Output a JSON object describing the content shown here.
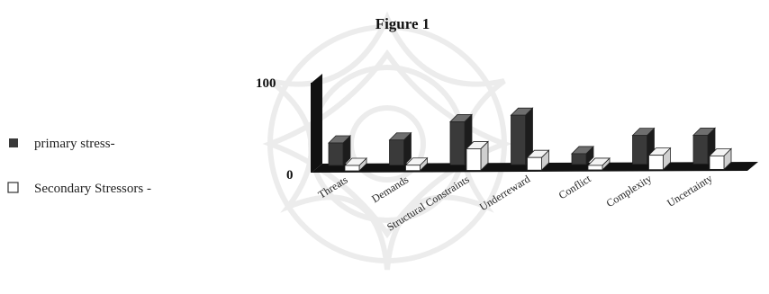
{
  "chart_data": {
    "type": "bar",
    "title": "Figure 1",
    "categories": [
      "Threats",
      "Demands",
      "Structural Constraints",
      "Underreward",
      "Conflict",
      "Complexity",
      "Uncertainty"
    ],
    "series": [
      {
        "name": "primary stress-",
        "values": [
          25,
          28,
          48,
          55,
          12,
          32,
          32
        ],
        "color": "#3a3a3a"
      },
      {
        "name": "Secondary Stressors -",
        "values": [
          6,
          6,
          24,
          14,
          5,
          16,
          15
        ],
        "color": "#ffffff"
      }
    ],
    "ylim": [
      0,
      100
    ],
    "yticks": [
      "0",
      "100"
    ],
    "legend_position": "left",
    "grid": false
  }
}
